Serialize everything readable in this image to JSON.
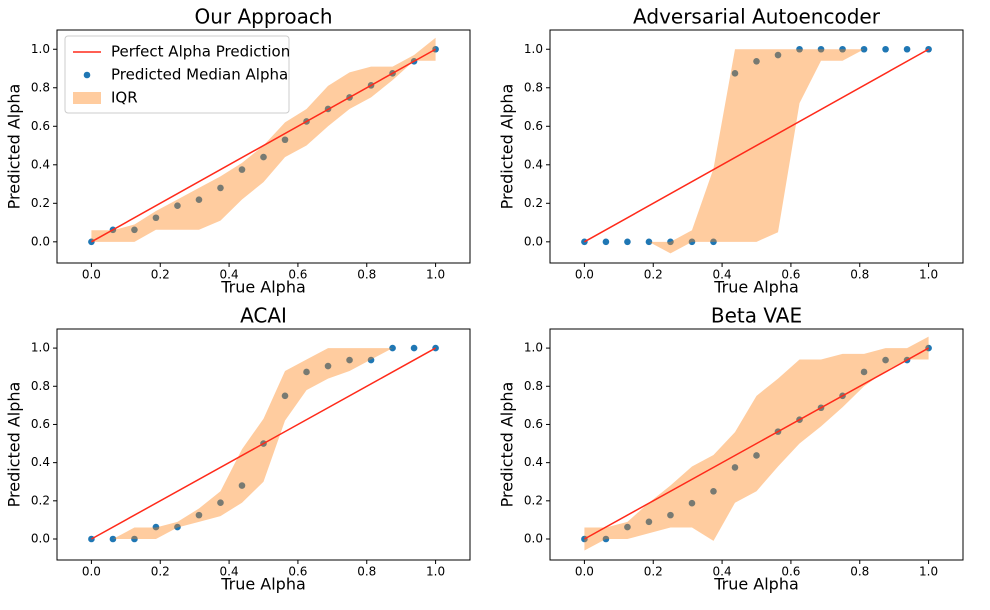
{
  "chart_data": [
    {
      "type": "line",
      "title": "Our Approach",
      "xlabel": "True Alpha",
      "ylabel": "Predicted Alpha",
      "legend": "upper left",
      "x": [
        0,
        0.0625,
        0.125,
        0.1875,
        0.25,
        0.3125,
        0.375,
        0.4375,
        0.5,
        0.5625,
        0.625,
        0.6875,
        0.75,
        0.8125,
        0.875,
        0.9375,
        1
      ],
      "xlim": [
        -0.1,
        1.1
      ],
      "ylim": [
        -0.11,
        1.1
      ],
      "xticks": [
        {
          "value": 0,
          "label": "0.0"
        },
        0.2,
        0.4,
        0.6,
        0.8,
        {
          "value": 1,
          "label": "1.0"
        }
      ],
      "yticks": [
        {
          "value": 0,
          "label": "0.0"
        },
        0.2,
        0.4,
        0.6,
        0.8,
        {
          "value": 1,
          "label": "1.0"
        }
      ],
      "series": [
        {
          "name": "Perfect Alpha Prediction",
          "type": "line",
          "color": "#ff2a1a",
          "x": [
            0,
            1
          ],
          "values": [
            0,
            1
          ]
        },
        {
          "name": "Predicted Median Alpha",
          "type": "scatter",
          "color": "#1f77b4",
          "values": [
            0,
            0.0625,
            0.0625,
            0.125,
            0.1875,
            0.21875,
            0.28,
            0.375,
            0.44,
            0.53,
            0.625,
            0.69,
            0.75,
            0.8125,
            0.875,
            0.9375,
            1
          ]
        },
        {
          "name": "IQR",
          "type": "band",
          "color": "#ff7f0e",
          "lower": [
            0,
            0,
            0,
            0.0625,
            0.0625,
            0.0625,
            0.11,
            0.22,
            0.31,
            0.44,
            0.5,
            0.6,
            0.69,
            0.75,
            0.84,
            0.94,
            0.94
          ],
          "upper": [
            0.06,
            0.06,
            0.09,
            0.16,
            0.22,
            0.28,
            0.34,
            0.41,
            0.5,
            0.62,
            0.69,
            0.81,
            0.88,
            0.91,
            0.91,
            0.97,
            1.06
          ]
        }
      ]
    },
    {
      "type": "line",
      "title": "Adversarial Autoencoder",
      "xlabel": "True Alpha",
      "ylabel": "Predicted Alpha",
      "x": [
        0,
        0.0625,
        0.125,
        0.1875,
        0.25,
        0.3125,
        0.375,
        0.4375,
        0.5,
        0.5625,
        0.625,
        0.6875,
        0.75,
        0.8125,
        0.875,
        0.9375,
        1
      ],
      "xlim": [
        -0.1,
        1.1
      ],
      "ylim": [
        -0.11,
        1.1
      ],
      "xticks": [
        {
          "value": 0,
          "label": "0.0"
        },
        0.2,
        0.4,
        0.6,
        0.8,
        {
          "value": 1,
          "label": "1.0"
        }
      ],
      "yticks": [
        {
          "value": 0,
          "label": "0.0"
        },
        0.2,
        0.4,
        0.6,
        0.8,
        {
          "value": 1,
          "label": "1.0"
        }
      ],
      "series": [
        {
          "type": "line",
          "color": "#ff2a1a",
          "x": [
            0,
            1
          ],
          "values": [
            0,
            1
          ]
        },
        {
          "type": "scatter",
          "color": "#1f77b4",
          "values": [
            0,
            0,
            0,
            0,
            0,
            0,
            0,
            0.875,
            0.9375,
            0.97,
            1,
            1,
            1,
            1,
            1,
            1,
            1
          ]
        },
        {
          "type": "band",
          "color": "#ff7f0e",
          "lower": [
            0,
            0,
            0,
            0,
            -0.06,
            0,
            0,
            0,
            0,
            0.05,
            0.72,
            0.94,
            0.94,
            1,
            1,
            1,
            1
          ],
          "upper": [
            0,
            0,
            0,
            0,
            0,
            0.06,
            0.38,
            1,
            1,
            1,
            1,
            1,
            1,
            1,
            1,
            1,
            1
          ]
        }
      ]
    },
    {
      "type": "line",
      "title": "ACAI",
      "xlabel": "True Alpha",
      "ylabel": "Predicted Alpha",
      "x": [
        0,
        0.0625,
        0.125,
        0.1875,
        0.25,
        0.3125,
        0.375,
        0.4375,
        0.5,
        0.5625,
        0.625,
        0.6875,
        0.75,
        0.8125,
        0.875,
        0.9375,
        1
      ],
      "xlim": [
        -0.1,
        1.1
      ],
      "ylim": [
        -0.11,
        1.1
      ],
      "xticks": [
        {
          "value": 0,
          "label": "0.0"
        },
        0.2,
        0.4,
        0.6,
        0.8,
        {
          "value": 1,
          "label": "1.0"
        }
      ],
      "yticks": [
        {
          "value": 0,
          "label": "0.0"
        },
        0.2,
        0.4,
        0.6,
        0.8,
        {
          "value": 1,
          "label": "1.0"
        }
      ],
      "series": [
        {
          "type": "line",
          "color": "#ff2a1a",
          "x": [
            0,
            1
          ],
          "values": [
            0,
            1
          ]
        },
        {
          "type": "scatter",
          "color": "#1f77b4",
          "values": [
            0,
            0,
            0,
            0.0625,
            0.0625,
            0.125,
            0.19,
            0.28,
            0.5,
            0.75,
            0.875,
            0.906,
            0.9375,
            0.9375,
            1,
            1,
            1
          ]
        },
        {
          "type": "band",
          "color": "#ff7f0e",
          "lower": [
            0,
            0,
            0,
            0,
            0.06,
            0.09,
            0.12,
            0.19,
            0.3,
            0.62,
            0.78,
            0.84,
            0.88,
            0.94,
            1,
            1,
            1
          ],
          "upper": [
            0,
            0,
            0.06,
            0.06,
            0.09,
            0.16,
            0.25,
            0.47,
            0.63,
            0.88,
            0.94,
            1,
            1,
            1,
            1,
            1,
            1
          ]
        }
      ]
    },
    {
      "type": "line",
      "title": "Beta VAE",
      "xlabel": "True Alpha",
      "ylabel": "Predicted Alpha",
      "x": [
        0,
        0.0625,
        0.125,
        0.1875,
        0.25,
        0.3125,
        0.375,
        0.4375,
        0.5,
        0.5625,
        0.625,
        0.6875,
        0.75,
        0.8125,
        0.875,
        0.9375,
        1
      ],
      "xlim": [
        -0.1,
        1.1
      ],
      "ylim": [
        -0.11,
        1.1
      ],
      "xticks": [
        {
          "value": 0,
          "label": "0.0"
        },
        0.2,
        0.4,
        0.6,
        0.8,
        {
          "value": 1,
          "label": "1.0"
        }
      ],
      "yticks": [
        {
          "value": 0,
          "label": "0.0"
        },
        0.2,
        0.4,
        0.6,
        0.8,
        {
          "value": 1,
          "label": "1.0"
        }
      ],
      "series": [
        {
          "type": "line",
          "color": "#ff2a1a",
          "x": [
            0,
            1
          ],
          "values": [
            0,
            1
          ]
        },
        {
          "type": "scatter",
          "color": "#1f77b4",
          "values": [
            0,
            0,
            0.0625,
            0.09,
            0.125,
            0.1875,
            0.25,
            0.375,
            0.4375,
            0.5625,
            0.625,
            0.6875,
            0.75,
            0.875,
            0.9375,
            0.9375,
            1
          ]
        },
        {
          "type": "band",
          "color": "#ff7f0e",
          "lower": [
            -0.06,
            0,
            0,
            0.03,
            0.06,
            0.06,
            -0.01,
            0.19,
            0.25,
            0.38,
            0.5,
            0.59,
            0.69,
            0.8,
            0.88,
            0.94,
            0.94
          ],
          "upper": [
            0.06,
            0.06,
            0.09,
            0.19,
            0.28,
            0.38,
            0.44,
            0.56,
            0.75,
            0.84,
            0.94,
            0.94,
            0.97,
            0.97,
            1,
            1,
            1.06
          ]
        }
      ]
    }
  ]
}
